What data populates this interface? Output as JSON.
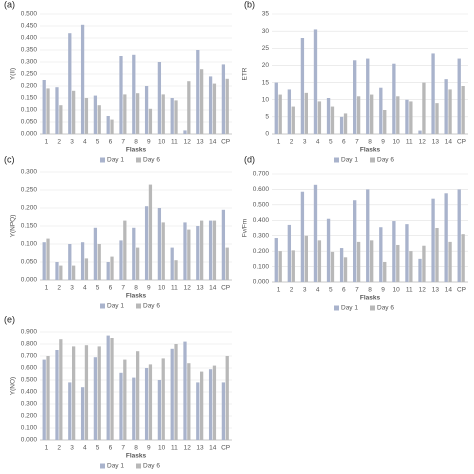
{
  "chart_data": [
    {
      "type": "bar",
      "label": "(a)",
      "ylabel": "Y(II)",
      "xlabel": "Flasks",
      "grid": true,
      "legend": "bottom",
      "categories": [
        "1",
        "2",
        "3",
        "4",
        "5",
        "6",
        "7",
        "8",
        "9",
        "10",
        "11",
        "12",
        "13",
        "14",
        "CP"
      ],
      "ylim": [
        0,
        0.5
      ],
      "yticks": [
        {
          "value": 0,
          "label": "0.000"
        },
        {
          "value": 0.05,
          "label": "0.050"
        },
        {
          "value": 0.1,
          "label": "0.100"
        },
        {
          "value": 0.15,
          "label": "0.150"
        },
        {
          "value": 0.2,
          "label": "0.200"
        },
        {
          "value": 0.25,
          "label": "0.250"
        },
        {
          "value": 0.3,
          "label": "0.300"
        },
        {
          "value": 0.35,
          "label": "0.350"
        },
        {
          "value": 0.4,
          "label": "0.400"
        },
        {
          "value": 0.45,
          "label": "0.450"
        },
        {
          "value": 0.5,
          "label": "0.500"
        }
      ],
      "series": [
        {
          "name": "Day 1",
          "color": "#a9b3cc",
          "values": [
            0.225,
            0.195,
            0.42,
            0.455,
            0.16,
            0.075,
            0.325,
            0.33,
            0.2,
            0.3,
            0.15,
            0.015,
            0.35,
            0.24,
            0.29
          ]
        },
        {
          "name": "Day 6",
          "color": "#b8b8b8",
          "values": [
            0.19,
            0.12,
            0.18,
            0.15,
            0.12,
            0.06,
            0.165,
            0.17,
            0.105,
            0.165,
            0.14,
            0.22,
            0.27,
            0.21,
            0.23
          ]
        }
      ]
    },
    {
      "type": "bar",
      "label": "(b)",
      "ylabel": "ETR",
      "xlabel": "Flasks",
      "grid": true,
      "legend": "bottom",
      "categories": [
        "1",
        "2",
        "3",
        "4",
        "5",
        "6",
        "7",
        "8",
        "9",
        "10",
        "11",
        "12",
        "13",
        "14",
        "CP"
      ],
      "ylim": [
        0,
        35
      ],
      "yticks": [
        0,
        5,
        10,
        15,
        20,
        25,
        30,
        35
      ],
      "series": [
        {
          "name": "Day 1",
          "color": "#a9b3cc",
          "values": [
            15,
            13,
            28,
            30.5,
            10.5,
            5,
            21.5,
            22,
            13.5,
            20.5,
            10,
            1,
            23.5,
            16,
            22
          ]
        },
        {
          "name": "Day 6",
          "color": "#b8b8b8",
          "values": [
            11.5,
            8,
            12,
            9.5,
            8,
            6,
            11,
            11.5,
            7,
            11,
            9.5,
            15,
            9,
            13,
            14
          ]
        }
      ]
    },
    {
      "type": "bar",
      "label": "(c)",
      "ylabel": "Y(NPQ)",
      "xlabel": "Flasks",
      "grid": true,
      "legend": "bottom",
      "categories": [
        "1",
        "2",
        "3",
        "4",
        "5",
        "6",
        "7",
        "8",
        "9",
        "10",
        "11",
        "12",
        "13",
        "14",
        "CP"
      ],
      "ylim": [
        0,
        0.3
      ],
      "yticks": [
        {
          "value": 0,
          "label": "0.000"
        },
        {
          "value": 0.05,
          "label": "0.050"
        },
        {
          "value": 0.1,
          "label": "0.100"
        },
        {
          "value": 0.15,
          "label": "0.150"
        },
        {
          "value": 0.2,
          "label": "0.200"
        },
        {
          "value": 0.25,
          "label": "0.250"
        },
        {
          "value": 0.3,
          "label": "0.300"
        }
      ],
      "series": [
        {
          "name": "Day 1",
          "color": "#a9b3cc",
          "values": [
            0.105,
            0.05,
            0.1,
            0.105,
            0.145,
            0.05,
            0.11,
            0.145,
            0.205,
            0.2,
            0.09,
            0.16,
            0.15,
            0.165,
            0.195
          ]
        },
        {
          "name": "Day 6",
          "color": "#b8b8b8",
          "values": [
            0.115,
            0.04,
            0.04,
            0.06,
            0.1,
            0.065,
            0.165,
            0.09,
            0.265,
            0.16,
            0.055,
            0.14,
            0.165,
            0.165,
            0.09
          ]
        }
      ]
    },
    {
      "type": "bar",
      "label": "(d)",
      "ylabel": "Fv/Fm",
      "xlabel": "Flasks",
      "grid": true,
      "legend": "bottom",
      "categories": [
        "1",
        "2",
        "3",
        "4",
        "5",
        "6",
        "7",
        "8",
        "9",
        "10",
        "11",
        "12",
        "13",
        "14",
        "CP"
      ],
      "ylim": [
        0,
        0.7
      ],
      "yticks": [
        {
          "value": 0,
          "label": "0.000"
        },
        {
          "value": 0.1,
          "label": "0.100"
        },
        {
          "value": 0.2,
          "label": "0.200"
        },
        {
          "value": 0.3,
          "label": "0.300"
        },
        {
          "value": 0.4,
          "label": "0.400"
        },
        {
          "value": 0.5,
          "label": "0.500"
        },
        {
          "value": 0.6,
          "label": "0.600"
        },
        {
          "value": 0.7,
          "label": "0.700"
        }
      ],
      "series": [
        {
          "name": "Day 1",
          "color": "#a9b3cc",
          "values": [
            0.285,
            0.37,
            0.585,
            0.63,
            0.41,
            0.22,
            0.53,
            0.6,
            0.355,
            0.395,
            0.375,
            0.15,
            0.54,
            0.575,
            0.6
          ]
        },
        {
          "name": "Day 6",
          "color": "#b8b8b8",
          "values": [
            0.2,
            0.205,
            0.3,
            0.27,
            0.195,
            0.16,
            0.26,
            0.27,
            0.13,
            0.24,
            0.2,
            0.235,
            0.35,
            0.26,
            0.31
          ]
        }
      ]
    },
    {
      "type": "bar",
      "label": "(e)",
      "ylabel": "Y(NO)",
      "xlabel": "Flasks",
      "grid": true,
      "legend": "bottom",
      "categories": [
        "1",
        "2",
        "3",
        "4",
        "5",
        "6",
        "7",
        "8",
        "9",
        "10",
        "11",
        "12",
        "13",
        "14",
        "CP"
      ],
      "ylim": [
        0,
        0.9
      ],
      "yticks": [
        {
          "value": 0,
          "label": "0.000"
        },
        {
          "value": 0.1,
          "label": "0.100"
        },
        {
          "value": 0.2,
          "label": "0.200"
        },
        {
          "value": 0.3,
          "label": "0.300"
        },
        {
          "value": 0.4,
          "label": "0.400"
        },
        {
          "value": 0.5,
          "label": "0.500"
        },
        {
          "value": 0.6,
          "label": "0.600"
        },
        {
          "value": 0.7,
          "label": "0.700"
        },
        {
          "value": 0.8,
          "label": "0.800"
        },
        {
          "value": 0.9,
          "label": "0.900"
        }
      ],
      "series": [
        {
          "name": "Day 1",
          "color": "#a9b3cc",
          "values": [
            0.67,
            0.75,
            0.48,
            0.44,
            0.69,
            0.87,
            0.56,
            0.52,
            0.6,
            0.5,
            0.76,
            0.82,
            0.48,
            0.59,
            0.48
          ]
        },
        {
          "name": "Day 6",
          "color": "#b8b8b8",
          "values": [
            0.7,
            0.84,
            0.78,
            0.79,
            0.78,
            0.85,
            0.67,
            0.74,
            0.63,
            0.68,
            0.8,
            0.64,
            0.57,
            0.62,
            0.7
          ]
        }
      ]
    }
  ]
}
